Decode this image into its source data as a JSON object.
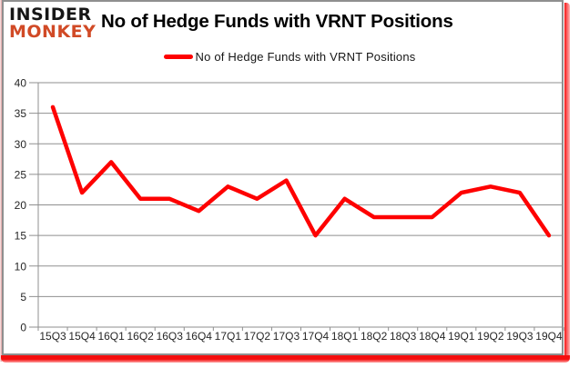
{
  "brand": {
    "line1": "INSIDER",
    "line2": "MONKEY",
    "line1_color": "#161616",
    "line2_color": "#d14a26"
  },
  "header": {
    "title": "No of Hedge Funds with VRNT Positions"
  },
  "legend": {
    "label": "No of Hedge Funds with VRNT Positions",
    "marker_color": "#fe0000"
  },
  "chart_data": {
    "type": "line",
    "title": "No of Hedge Funds with VRNT Positions",
    "categories": [
      "15Q3",
      "15Q4",
      "16Q1",
      "16Q2",
      "16Q3",
      "16Q4",
      "17Q1",
      "17Q2",
      "17Q3",
      "17Q4",
      "18Q1",
      "18Q2",
      "18Q3",
      "18Q4",
      "19Q1",
      "19Q2",
      "19Q3",
      "19Q4"
    ],
    "series": [
      {
        "name": "No of Hedge Funds with VRNT Positions",
        "color": "#fe0000",
        "values": [
          36,
          22,
          27,
          21,
          21,
          19,
          23,
          21,
          24,
          15,
          21,
          18,
          18,
          18,
          22,
          23,
          22,
          15
        ]
      }
    ],
    "xlabel": "",
    "ylabel": "",
    "ylim": [
      0,
      40
    ],
    "ytick_step": 5,
    "grid": true,
    "grid_color": "#8f8f8f",
    "tick_label_color": "#262626",
    "legend_position": "top-center"
  }
}
